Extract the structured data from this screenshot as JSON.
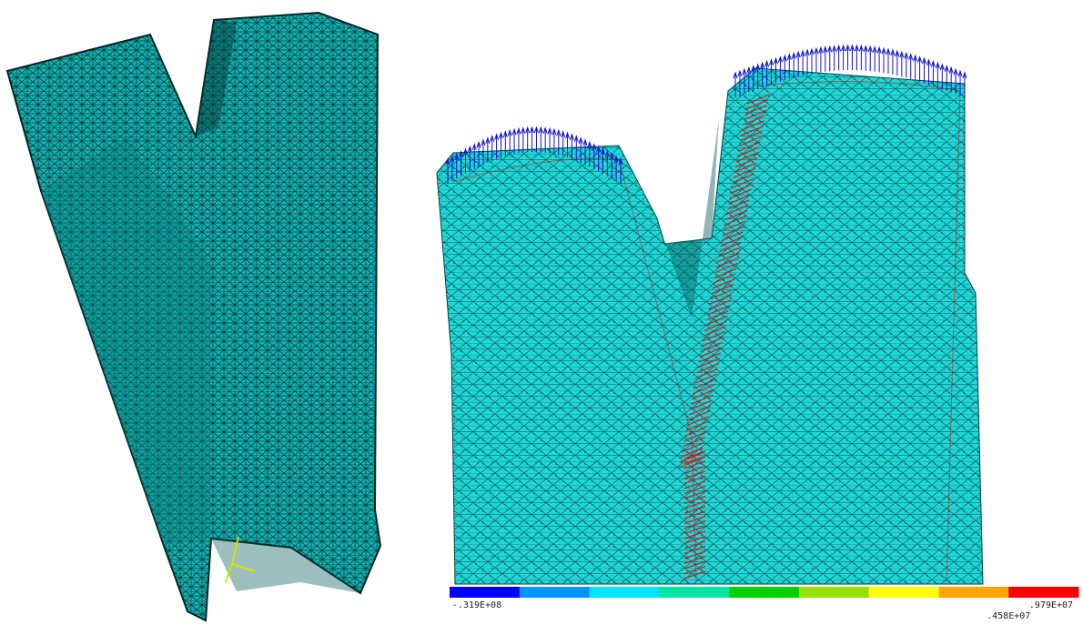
{
  "legend": {
    "colors": [
      "#0000ff",
      "#0095ff",
      "#00e6ff",
      "#00e6a0",
      "#00d200",
      "#96e100",
      "#ffff00",
      "#ffa500",
      "#ff0000"
    ],
    "labels": [
      {
        "text": "-.319E+08",
        "row": 0,
        "at": 0
      },
      {
        "text": ".458E+07",
        "row": 1,
        "at": 8
      },
      {
        "text": ".979E+07",
        "row": 0,
        "at": 9
      }
    ]
  }
}
